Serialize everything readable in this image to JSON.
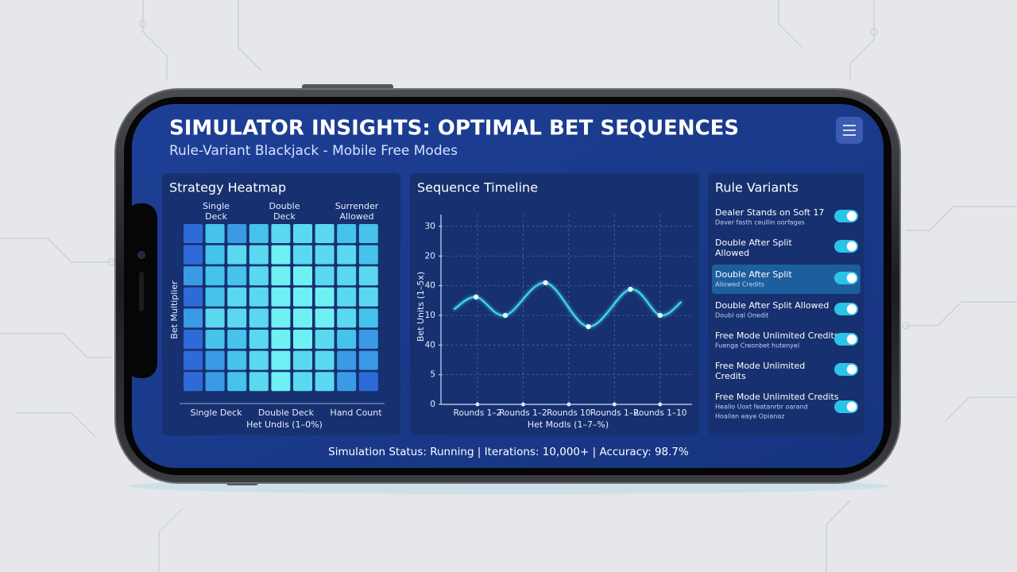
{
  "header": {
    "title": "SIMULATOR INSIGHTS: OPTIMAL BET SEQUENCES",
    "subtitle": "Rule-Variant Blackjack - Mobile Free Modes"
  },
  "heatmap": {
    "title": "Strategy Heatmap",
    "top_labels": [
      [
        "Single",
        "Deck"
      ],
      [
        "Double",
        "Deck"
      ],
      [
        "Surrender",
        "Allowed"
      ]
    ],
    "bottom_labels": [
      "Single Deck",
      "Double Deck",
      "Hand Count"
    ],
    "y_label": "Bet Multiplier",
    "x_label": "Het Undis (1–0%)",
    "cell_colors": [
      [
        "#2e6bd8",
        "#45c3ea",
        "#3a9ae6",
        "#45c3ea",
        "#5ad8ef",
        "#5ad8ef",
        "#5ad8ef",
        "#45c3ea",
        "#45c3ea"
      ],
      [
        "#2e6bd8",
        "#45c3ea",
        "#5ad8ef",
        "#5ad8ef",
        "#6ef0f5",
        "#5ad8ef",
        "#5ad8ef",
        "#5ad8ef",
        "#45c3ea"
      ],
      [
        "#3a9ae6",
        "#45c3ea",
        "#45c3ea",
        "#5ad8ef",
        "#6ef0f5",
        "#6ef0f5",
        "#5ad8ef",
        "#5ad8ef",
        "#5ad8ef"
      ],
      [
        "#2e6bd8",
        "#45c3ea",
        "#5ad8ef",
        "#5ad8ef",
        "#6ef0f5",
        "#6ef0f5",
        "#6ef0f5",
        "#5ad8ef",
        "#5ad8ef"
      ],
      [
        "#3a9ae6",
        "#5ad8ef",
        "#5ad8ef",
        "#5ad8ef",
        "#6ef0f5",
        "#6ef0f5",
        "#6ef0f5",
        "#5ad8ef",
        "#45c3ea"
      ],
      [
        "#2e6bd8",
        "#45c3ea",
        "#45c3ea",
        "#5ad8ef",
        "#6ef0f5",
        "#6ef0f5",
        "#5ad8ef",
        "#45c3ea",
        "#3a9ae6"
      ],
      [
        "#2e6bd8",
        "#3a9ae6",
        "#45c3ea",
        "#5ad8ef",
        "#6ef0f5",
        "#5ad8ef",
        "#5ad8ef",
        "#3a9ae6",
        "#3a9ae6"
      ],
      [
        "#2e6bd8",
        "#3a9ae6",
        "#45c3ea",
        "#5ad8ef",
        "#6ef0f5",
        "#5ad8ef",
        "#5ad8ef",
        "#3a9ae6",
        "#2e6bd8"
      ]
    ]
  },
  "chart_data": {
    "type": "line",
    "title": "Sequence Timeline",
    "y_label": "Bet Units (1–5x)",
    "x_label": "Het Modls (1–7–%)",
    "xlim": [
      0.2,
      5.7
    ],
    "xticks": [
      {
        "value": 1,
        "label": "Rounds 1–2"
      },
      {
        "value": 2,
        "label": "Rounds 1–2"
      },
      {
        "value": 3,
        "label": "Rounds 10"
      },
      {
        "value": 4,
        "label": "Rounds 1–2"
      },
      {
        "value": 5,
        "label": "Rounds 1–10"
      }
    ],
    "ylim": [
      0,
      32
    ],
    "yticks": [
      0,
      5,
      {
        "value": 10,
        "label": "40"
      },
      {
        "value": 15,
        "label": "10"
      },
      {
        "value": 20,
        "label": "40"
      },
      {
        "value": 25,
        "label": "20"
      },
      30
    ],
    "grid": true,
    "series": [
      {
        "color": "#3fd8ee",
        "x": [
          0.48,
          0.97,
          1.61,
          2.49,
          3.43,
          4.35,
          5.0,
          5.47
        ],
        "values": [
          16,
          18.1,
          15,
          20.5,
          13.1,
          19.4,
          15,
          17.3
        ]
      }
    ]
  },
  "rules": {
    "title": "Rule Variants",
    "items": [
      {
        "lines": [
          "Dealer Stands on Soft 17"
        ],
        "sub": [
          "Daver fasth ceullin oorfages"
        ],
        "enabled": true
      },
      {
        "lines": [
          "Double After Split",
          "Allowed"
        ],
        "enabled": true
      },
      {
        "lines": [
          "Double After Split"
        ],
        "sub": [
          "Allowed Credits"
        ],
        "enabled": true,
        "highlighted": true
      },
      {
        "lines": [
          "Double After Split Allowed"
        ],
        "sub": [
          "Doubl oal Onedit"
        ],
        "enabled": true
      },
      {
        "lines": [
          "Free Mode Unlimited Credits"
        ],
        "sub": [
          "Fuenga Creonbet hutenyel"
        ],
        "enabled": true
      },
      {
        "lines": [
          "Free Mode Unlimited",
          "Credits"
        ],
        "enabled": true
      },
      {
        "lines": [
          "Free Mode Unlimited Credits"
        ],
        "sub": [
          "Heallo Uoxt featanrbr oarand",
          "Hoallan eaye Opianaz"
        ],
        "enabled": true
      }
    ]
  },
  "status": "Simulation Status: Running | Iterations: 10,000+ | Accuracy: 98.7%"
}
